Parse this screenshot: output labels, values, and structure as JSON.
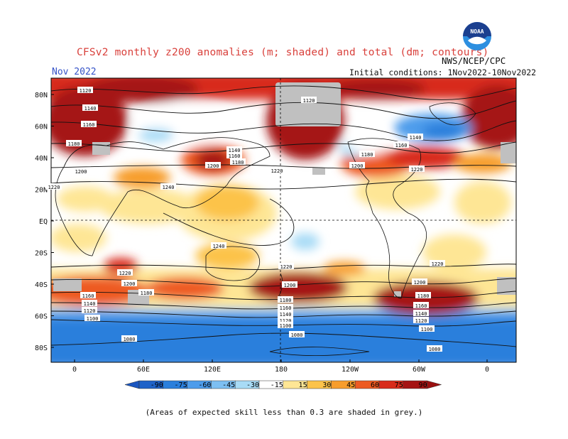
{
  "title": "CFSv2 monthly z200 anomalies (m; shaded) and total (dm; contours)",
  "source": "NWS/NCEP/CPC",
  "month": "Nov 2022",
  "initial_conditions": "Initial conditions: 1Nov2022-10Nov2022",
  "footnote": "(Areas of expected skill less than 0.3 are shaded in grey.)",
  "logo": {
    "icon": "noaa-logo-icon",
    "text": "NOAA",
    "colors": [
      "#1b3f8f",
      "#2d8fe0",
      "#ffffff"
    ]
  },
  "map": {
    "lat_labels": [
      "80N",
      "60N",
      "40N",
      "20N",
      "EQ",
      "20S",
      "40S",
      "60S",
      "80S"
    ],
    "lon_labels": [
      "0",
      "60E",
      "120E",
      "180",
      "120W",
      "60W",
      "0"
    ],
    "contour_labels": {
      "northern": [
        "1120",
        "1140",
        "1160",
        "1180",
        "1200",
        "1220",
        "1240",
        "1140",
        "1160",
        "1180",
        "1200",
        "1220",
        "1120",
        "1140",
        "1160",
        "1180",
        "1200",
        "1220"
      ],
      "southern": [
        "1240",
        "1220",
        "1200",
        "1180",
        "1160",
        "1140",
        "1120",
        "1100",
        "1080",
        "1220",
        "1200",
        "1180",
        "1160",
        "1140",
        "1120",
        "1100",
        "1080",
        "1220",
        "1200",
        "1180",
        "1160",
        "1140",
        "1120",
        "1100",
        "1080"
      ]
    },
    "skill_mask_color": "#c0c0c0"
  },
  "colorbar": {
    "labels": [
      "-90",
      "-75",
      "-60",
      "-45",
      "-30",
      "-15",
      "15",
      "30",
      "45",
      "60",
      "75",
      "90"
    ],
    "colors": [
      "#1f62c8",
      "#2b7fdc",
      "#4d9ceb",
      "#7dbff2",
      "#a8dbf6",
      "#ffffff",
      "#fee695",
      "#fcc34a",
      "#f79d2c",
      "#ed5a21",
      "#d82b1b",
      "#a51313"
    ],
    "end_colors": {
      "low": "#1a56c0",
      "high": "#9a0f0f"
    }
  }
}
